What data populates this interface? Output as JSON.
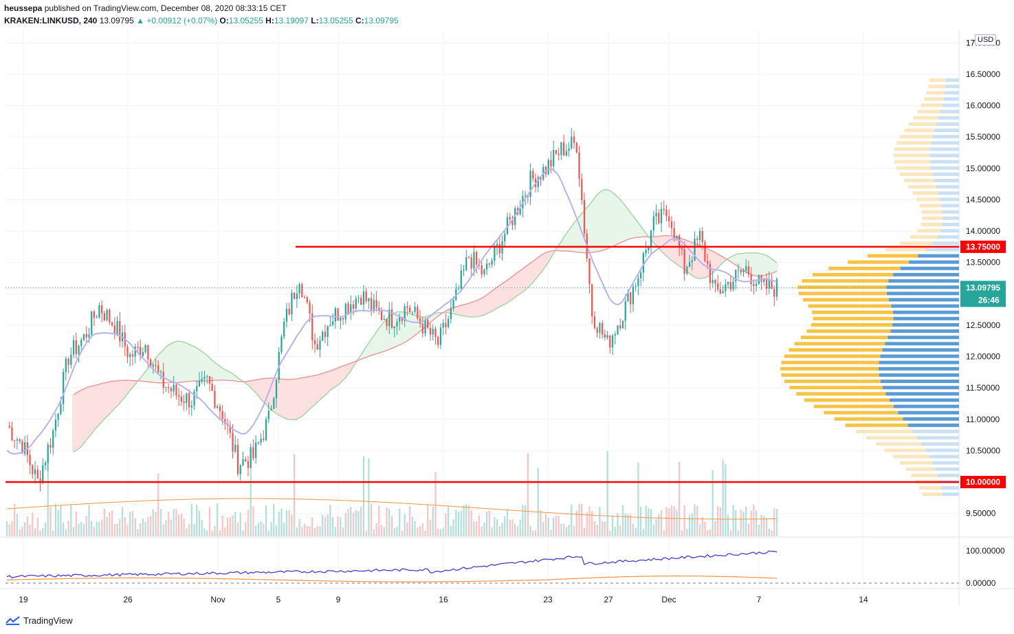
{
  "header": {
    "author": "heussepa",
    "published_text": "published on TradingView.com, December 08, 2020 08:33:15 CET",
    "symbol": "KRAKEN:LINKUSD, 240",
    "last": "13.09795",
    "change": "▲ +0.00912 (+0.07%)",
    "o_label": "O:",
    "o_value": "13.05255",
    "h_label": "H:",
    "h_value": "13.19097",
    "l_label": "L:",
    "l_value": "13.05255",
    "c_label": "C:",
    "c_value": "13.09795"
  },
  "currency_label": "USD",
  "footer": {
    "brand": "TradingView"
  },
  "colors": {
    "up": "#26a69a",
    "down": "#ef5350",
    "level": "#ff0000",
    "kijun": "#b7b1f2",
    "cloud_green": "#e8f5e9",
    "cloud_red": "#fde0e0",
    "vp_blue": "#5b9bd5",
    "vp_yellow": "#f6c344",
    "osc_blue": "#3f3fd0",
    "osc_orange": "#f59340"
  },
  "chart_data": {
    "type": "candlestick",
    "symbol": "KRAKEN:LINKUSD",
    "timeframe": "240",
    "price_axis_ticks": [
      "17.00000",
      "16.50000",
      "16.00000",
      "15.50000",
      "15.00000",
      "14.50000",
      "14.00000",
      "13.50000",
      "12.50000",
      "12.00000",
      "11.50000",
      "11.00000",
      "10.50000",
      "9.50000"
    ],
    "price_axis_top_partial": "17",
    "oscillator_axis_ticks": [
      "100.00000",
      "0.00000"
    ],
    "x_ticks": [
      "19",
      "26",
      "Nov",
      "5",
      "9",
      "16",
      "23",
      "27",
      "Dec",
      "7",
      "14"
    ],
    "horizontal_levels": [
      {
        "price": 13.75,
        "label": "13.75000"
      },
      {
        "price": 10.0,
        "label": "10.00000"
      }
    ],
    "last_price": {
      "value": 13.09795,
      "label": "13.09795",
      "countdown": "26:46"
    },
    "candles_approx_close": [
      {
        "d": "Oct 19",
        "p": 10.9
      },
      {
        "d": "Oct 20",
        "p": 10.6
      },
      {
        "d": "Oct 21",
        "p": 10.0
      },
      {
        "d": "Oct 22",
        "p": 10.8
      },
      {
        "d": "Oct 23",
        "p": 12.0
      },
      {
        "d": "Oct 24",
        "p": 12.3
      },
      {
        "d": "Oct 25",
        "p": 12.8
      },
      {
        "d": "Oct 26",
        "p": 12.5
      },
      {
        "d": "Oct 27",
        "p": 12.0
      },
      {
        "d": "Oct 28",
        "p": 12.2
      },
      {
        "d": "Oct 29",
        "p": 11.6
      },
      {
        "d": "Oct 30",
        "p": 11.4
      },
      {
        "d": "Oct 31",
        "p": 11.3
      },
      {
        "d": "Nov 1",
        "p": 11.6
      },
      {
        "d": "Nov 2",
        "p": 11.1
      },
      {
        "d": "Nov 3",
        "p": 10.3
      },
      {
        "d": "Nov 4",
        "p": 10.4
      },
      {
        "d": "Nov 5",
        "p": 11.0
      },
      {
        "d": "Nov 6",
        "p": 12.5
      },
      {
        "d": "Nov 7",
        "p": 13.3
      },
      {
        "d": "Nov 8",
        "p": 12.2
      },
      {
        "d": "Nov 9",
        "p": 12.6
      },
      {
        "d": "Nov 10",
        "p": 12.8
      },
      {
        "d": "Nov 11",
        "p": 13.0
      },
      {
        "d": "Nov 12",
        "p": 12.7
      },
      {
        "d": "Nov 13",
        "p": 12.6
      },
      {
        "d": "Nov 14",
        "p": 12.8
      },
      {
        "d": "Nov 15",
        "p": 12.5
      },
      {
        "d": "Nov 16",
        "p": 12.2
      },
      {
        "d": "Nov 17",
        "p": 12.8
      },
      {
        "d": "Nov 18",
        "p": 13.6
      },
      {
        "d": "Nov 19",
        "p": 13.3
      },
      {
        "d": "Nov 20",
        "p": 13.8
      },
      {
        "d": "Nov 21",
        "p": 14.3
      },
      {
        "d": "Nov 22",
        "p": 14.8
      },
      {
        "d": "Nov 23",
        "p": 15.0
      },
      {
        "d": "Nov 24",
        "p": 15.3
      },
      {
        "d": "Nov 25",
        "p": 15.4
      },
      {
        "d": "Nov 26",
        "p": 12.7
      },
      {
        "d": "Nov 27",
        "p": 12.2
      },
      {
        "d": "Nov 28",
        "p": 12.7
      },
      {
        "d": "Nov 29",
        "p": 13.3
      },
      {
        "d": "Nov 30",
        "p": 14.1
      },
      {
        "d": "Dec 1",
        "p": 14.3
      },
      {
        "d": "Dec 2",
        "p": 13.4
      },
      {
        "d": "Dec 3",
        "p": 13.9
      },
      {
        "d": "Dec 4",
        "p": 13.0
      },
      {
        "d": "Dec 5",
        "p": 13.2
      },
      {
        "d": "Dec 6",
        "p": 13.4
      },
      {
        "d": "Dec 7",
        "p": 13.1
      },
      {
        "d": "Dec 8",
        "p": 13.1
      }
    ]
  }
}
